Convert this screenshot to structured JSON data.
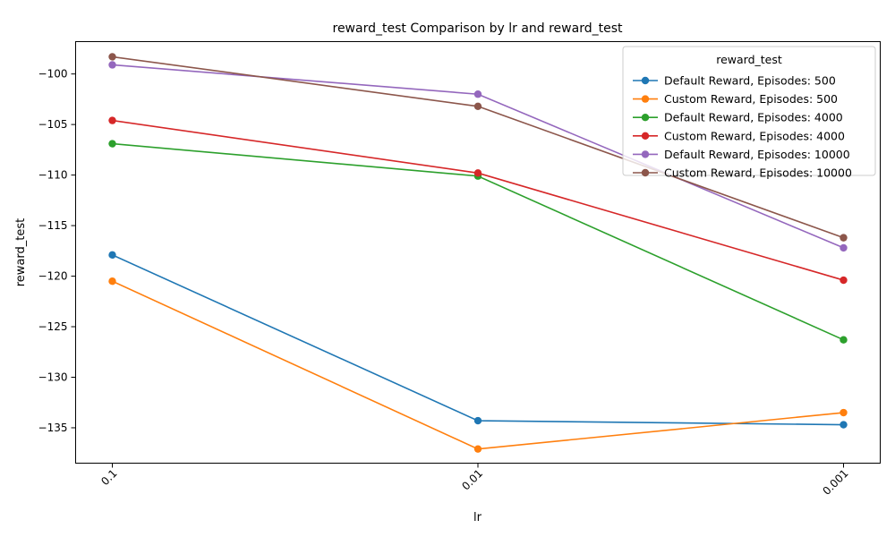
{
  "chart_data": {
    "type": "line",
    "title": "reward_test Comparison by lr and reward_test",
    "xlabel": "lr",
    "ylabel": "reward_test",
    "categories": [
      "0.1",
      "0.01",
      "0.001"
    ],
    "ylim": [
      -138.5,
      -96.8
    ],
    "yticks": [
      -135,
      -130,
      -125,
      -120,
      -115,
      -110,
      -105,
      -100
    ],
    "grid": false,
    "legend": {
      "title": "reward_test",
      "placement": "top-right"
    },
    "series": [
      {
        "name": "Default Reward, Episodes: 500",
        "color": "#1f77b4",
        "values": [
          -117.9,
          -134.3,
          -134.7
        ]
      },
      {
        "name": "Custom Reward, Episodes: 500",
        "color": "#ff7f0e",
        "values": [
          -120.5,
          -137.1,
          -133.5
        ]
      },
      {
        "name": "Default Reward, Episodes: 4000",
        "color": "#2ca02c",
        "values": [
          -106.9,
          -110.1,
          -126.3
        ]
      },
      {
        "name": "Custom Reward, Episodes: 4000",
        "color": "#d62728",
        "values": [
          -104.6,
          -109.8,
          -120.4
        ]
      },
      {
        "name": "Default Reward, Episodes: 10000",
        "color": "#9467bd",
        "values": [
          -99.1,
          -102.0,
          -117.2
        ]
      },
      {
        "name": "Custom Reward, Episodes: 10000",
        "color": "#8c564b",
        "values": [
          -98.3,
          -103.2,
          -116.2
        ]
      }
    ]
  }
}
